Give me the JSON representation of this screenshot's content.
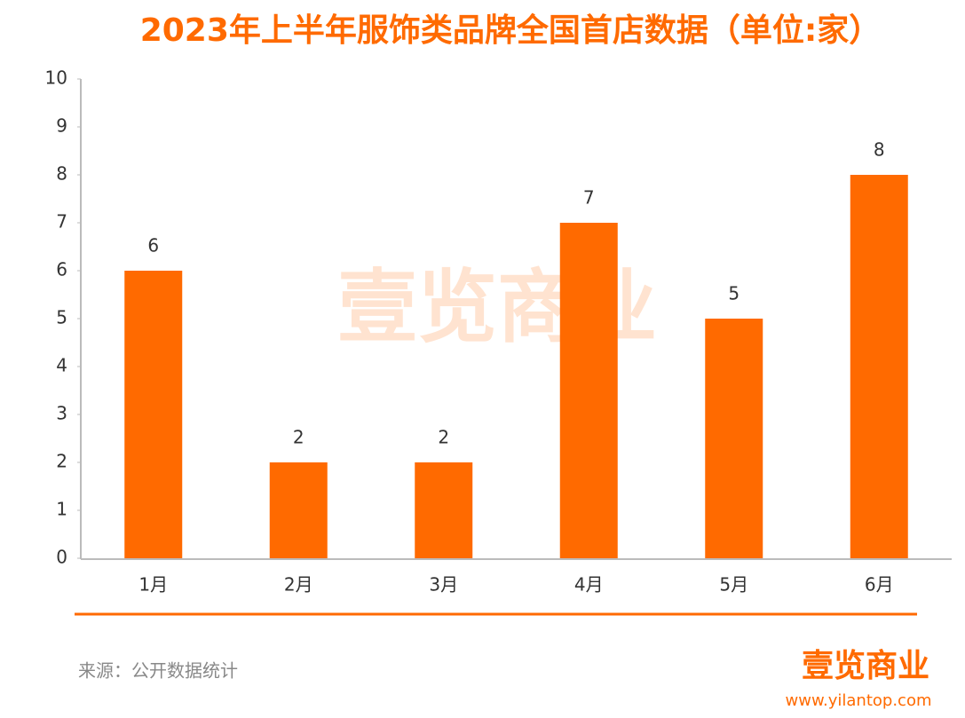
{
  "chart_data": {
    "type": "bar",
    "title": "2023年上半年服饰类品牌全国首店数据（单位:家）",
    "categories": [
      "1月",
      "2月",
      "3月",
      "4月",
      "5月",
      "6月"
    ],
    "values": [
      6,
      2,
      2,
      7,
      5,
      8
    ],
    "color": "#ff6a00",
    "ylim": [
      0,
      10
    ],
    "yticks": [
      0,
      1,
      2,
      3,
      4,
      5,
      6,
      7,
      8,
      9,
      10
    ],
    "source": "来源：公开数据统计",
    "watermark": "壹览商业",
    "logo_text": "壹览商业",
    "logo_url": "www.yilantop.com"
  }
}
